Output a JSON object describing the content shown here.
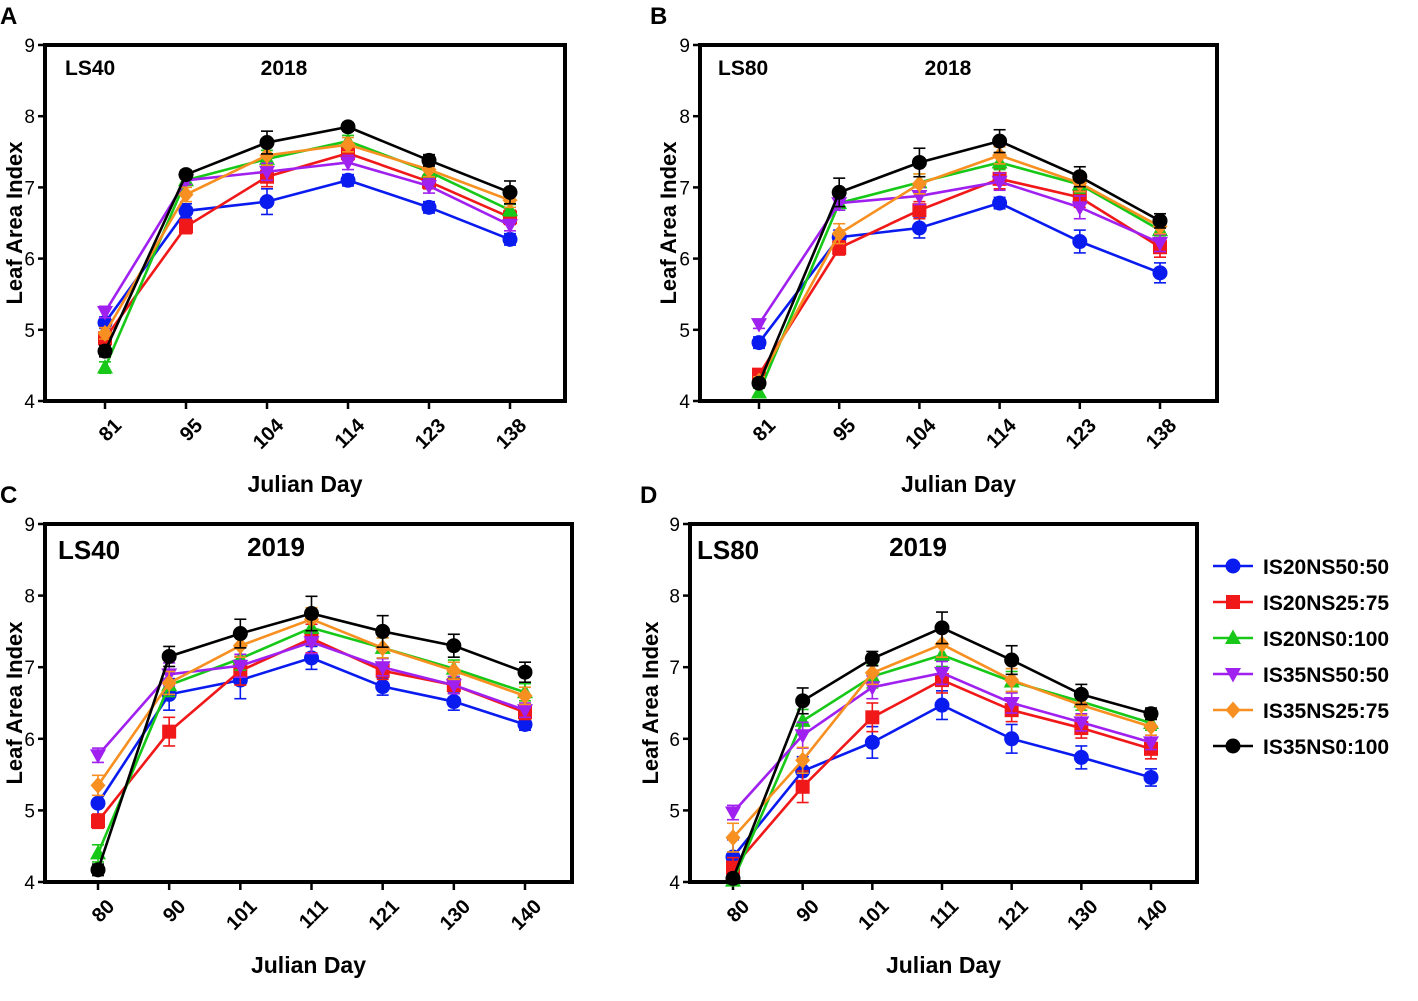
{
  "figure": {
    "legend": {
      "placement": "right of panel D",
      "items": [
        {
          "name": "IS20NS50:50",
          "marker": "circle",
          "color": "#0a1bf0"
        },
        {
          "name": "IS20NS25:75",
          "marker": "square",
          "color": "#f01818"
        },
        {
          "name": "IS20NS0:100",
          "marker": "triangle-up",
          "color": "#18c818"
        },
        {
          "name": "IS35NS50:50",
          "marker": "triangle-down",
          "color": "#a020f0"
        },
        {
          "name": "IS35NS25:75",
          "marker": "diamond",
          "color": "#f79020"
        },
        {
          "name": "IS35NS0:100",
          "marker": "circle",
          "color": "#000000"
        }
      ]
    }
  },
  "chart_data": [
    {
      "panel": "A",
      "type": "line",
      "label": "LS40",
      "title": "2018",
      "xlabel": "Julian Day",
      "ylabel": "Leaf Area Index",
      "ylim": [
        4,
        9
      ],
      "yticks": [
        4,
        5,
        6,
        7,
        8,
        9
      ],
      "categories": [
        "81",
        "95",
        "104",
        "114",
        "123",
        "138"
      ],
      "series": [
        {
          "name": "IS20NS50:50",
          "values": [
            5.1,
            6.67,
            6.8,
            7.1,
            6.72,
            6.27
          ],
          "errors": [
            0.08,
            0.1,
            0.18,
            0.08,
            0.08,
            0.08
          ]
        },
        {
          "name": "IS20NS25:75",
          "values": [
            4.88,
            6.45,
            7.15,
            7.48,
            7.08,
            6.58
          ],
          "errors": [
            0.08,
            0.1,
            0.14,
            0.1,
            0.1,
            0.1
          ]
        },
        {
          "name": "IS20NS0:100",
          "values": [
            4.47,
            7.1,
            7.4,
            7.65,
            7.22,
            6.68
          ],
          "errors": [
            0.08,
            0.06,
            0.12,
            0.08,
            0.1,
            0.08
          ]
        },
        {
          "name": "IS35NS50:50",
          "values": [
            5.25,
            7.1,
            7.22,
            7.35,
            7.02,
            6.47
          ],
          "errors": [
            0.08,
            0.06,
            0.12,
            0.1,
            0.1,
            0.08
          ]
        },
        {
          "name": "IS35NS25:75",
          "values": [
            4.95,
            6.9,
            7.45,
            7.6,
            7.25,
            6.82
          ],
          "errors": [
            0.08,
            0.1,
            0.14,
            0.1,
            0.1,
            0.1
          ]
        },
        {
          "name": "IS35NS0:100",
          "values": [
            4.7,
            7.18,
            7.63,
            7.85,
            7.38,
            6.93
          ],
          "errors": [
            0.08,
            0.06,
            0.16,
            0.06,
            0.08,
            0.16
          ]
        }
      ]
    },
    {
      "panel": "B",
      "type": "line",
      "label": "LS80",
      "title": "2018",
      "xlabel": "Julian Day",
      "ylabel": "Leaf Area Index",
      "ylim": [
        4,
        9
      ],
      "yticks": [
        4,
        5,
        6,
        7,
        8,
        9
      ],
      "categories": [
        "81",
        "95",
        "104",
        "114",
        "123",
        "138"
      ],
      "series": [
        {
          "name": "IS20NS50:50",
          "values": [
            4.82,
            6.3,
            6.43,
            6.78,
            6.24,
            5.8
          ],
          "errors": [
            0.08,
            0.1,
            0.14,
            0.08,
            0.16,
            0.14
          ]
        },
        {
          "name": "IS20NS25:75",
          "values": [
            4.37,
            6.15,
            6.68,
            7.12,
            6.86,
            6.16
          ],
          "errors": [
            0.08,
            0.1,
            0.12,
            0.14,
            0.14,
            0.14
          ]
        },
        {
          "name": "IS20NS0:100",
          "values": [
            4.12,
            6.78,
            7.07,
            7.35,
            7.04,
            6.4
          ],
          "errors": [
            0.06,
            0.1,
            0.12,
            0.1,
            0.12,
            0.1
          ]
        },
        {
          "name": "IS35NS50:50",
          "values": [
            5.08,
            6.78,
            6.88,
            7.08,
            6.72,
            6.22
          ],
          "errors": [
            0.06,
            0.1,
            0.12,
            0.12,
            0.16,
            0.12
          ]
        },
        {
          "name": "IS35NS25:75",
          "values": [
            4.28,
            6.35,
            7.05,
            7.45,
            7.06,
            6.45
          ],
          "errors": [
            0.06,
            0.14,
            0.14,
            0.12,
            0.12,
            0.1
          ]
        },
        {
          "name": "IS35NS0:100",
          "values": [
            4.25,
            6.93,
            7.35,
            7.65,
            7.15,
            6.53
          ],
          "errors": [
            0.06,
            0.2,
            0.2,
            0.16,
            0.14,
            0.1
          ]
        }
      ]
    },
    {
      "panel": "C",
      "type": "line",
      "label": "LS40",
      "title": "2019",
      "xlabel": "Julian Day",
      "ylabel": "Leaf Area Index",
      "ylim": [
        4,
        9
      ],
      "yticks": [
        4,
        5,
        6,
        7,
        8,
        9
      ],
      "categories": [
        "80",
        "90",
        "101",
        "111",
        "121",
        "130",
        "140"
      ],
      "series": [
        {
          "name": "IS20NS50:50",
          "values": [
            5.1,
            6.62,
            6.82,
            7.13,
            6.73,
            6.52,
            6.2
          ],
          "errors": [
            0.24,
            0.22,
            0.26,
            0.16,
            0.12,
            0.12,
            0.08
          ]
        },
        {
          "name": "IS20NS25:75",
          "values": [
            4.85,
            6.1,
            6.95,
            7.4,
            6.95,
            6.75,
            6.37
          ],
          "errors": [
            0.1,
            0.2,
            0.2,
            0.2,
            0.12,
            0.12,
            0.1
          ]
        },
        {
          "name": "IS20NS0:100",
          "values": [
            4.4,
            6.75,
            7.12,
            7.55,
            7.27,
            6.98,
            6.65
          ],
          "errors": [
            0.12,
            0.16,
            0.16,
            0.16,
            0.14,
            0.12,
            0.12
          ]
        },
        {
          "name": "IS35NS50:50",
          "values": [
            5.77,
            6.9,
            7.02,
            7.35,
            7.0,
            6.75,
            6.4
          ],
          "errors": [
            0.1,
            0.16,
            0.16,
            0.16,
            0.12,
            0.12,
            0.1
          ]
        },
        {
          "name": "IS35NS25:75",
          "values": [
            5.35,
            6.78,
            7.3,
            7.67,
            7.27,
            6.95,
            6.6
          ],
          "errors": [
            0.14,
            0.16,
            0.16,
            0.16,
            0.14,
            0.12,
            0.12
          ]
        },
        {
          "name": "IS35NS0:100",
          "values": [
            4.17,
            7.15,
            7.47,
            7.75,
            7.5,
            7.3,
            6.93
          ],
          "errors": [
            0.08,
            0.14,
            0.2,
            0.24,
            0.22,
            0.16,
            0.14
          ]
        }
      ]
    },
    {
      "panel": "D",
      "type": "line",
      "label": "LS80",
      "title": "2019",
      "xlabel": "Julian Day",
      "ylabel": "Leaf Area Index",
      "ylim": [
        4,
        9
      ],
      "yticks": [
        4,
        5,
        6,
        7,
        8,
        9
      ],
      "categories": [
        "80",
        "90",
        "101",
        "111",
        "121",
        "130",
        "140"
      ],
      "series": [
        {
          "name": "IS20NS50:50",
          "values": [
            4.35,
            5.55,
            5.95,
            6.47,
            6.0,
            5.74,
            5.46
          ],
          "errors": [
            0.24,
            0.2,
            0.22,
            0.2,
            0.2,
            0.16,
            0.12
          ]
        },
        {
          "name": "IS20NS25:75",
          "values": [
            4.2,
            5.33,
            6.3,
            6.82,
            6.4,
            6.15,
            5.86
          ],
          "errors": [
            0.14,
            0.22,
            0.2,
            0.18,
            0.16,
            0.14,
            0.14
          ]
        },
        {
          "name": "IS20NS0:100",
          "values": [
            4.02,
            6.25,
            6.87,
            7.17,
            6.8,
            6.52,
            6.22
          ],
          "errors": [
            0.06,
            0.16,
            0.16,
            0.16,
            0.14,
            0.12,
            0.1
          ]
        },
        {
          "name": "IS35NS50:50",
          "values": [
            4.97,
            6.05,
            6.72,
            6.92,
            6.5,
            6.23,
            5.95
          ],
          "errors": [
            0.1,
            0.18,
            0.16,
            0.16,
            0.14,
            0.12,
            0.1
          ]
        },
        {
          "name": "IS35NS25:75",
          "values": [
            4.62,
            5.7,
            6.92,
            7.32,
            6.82,
            6.47,
            6.17
          ],
          "errors": [
            0.2,
            0.18,
            0.16,
            0.18,
            0.16,
            0.14,
            0.12
          ]
        },
        {
          "name": "IS35NS0:100",
          "values": [
            4.05,
            6.53,
            7.12,
            7.55,
            7.1,
            6.62,
            6.35
          ],
          "errors": [
            0.06,
            0.18,
            0.1,
            0.22,
            0.2,
            0.14,
            0.08
          ]
        }
      ]
    }
  ]
}
